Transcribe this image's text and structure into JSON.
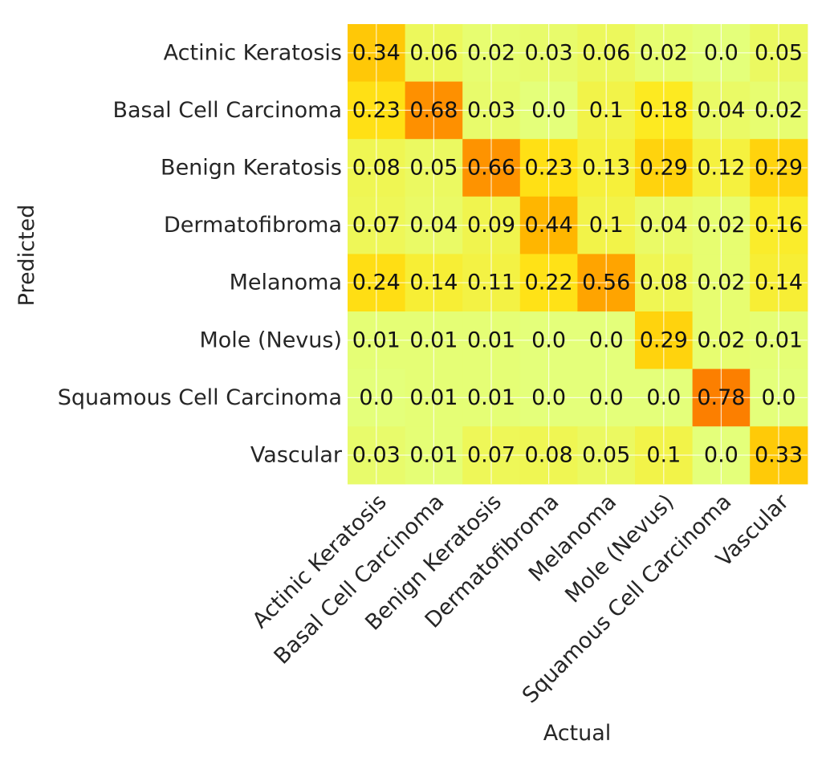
{
  "chart_data": {
    "type": "heatmap",
    "xlabel": "Actual",
    "ylabel": "Predicted",
    "x_categories": [
      "Actinic Keratosis",
      "Basal Cell Carcinoma",
      "Benign Keratosis",
      "Dermatofibroma",
      "Melanoma",
      "Mole (Nevus)",
      "Squamous Cell Carcinoma",
      "Vascular"
    ],
    "y_categories": [
      "Actinic Keratosis",
      "Basal Cell Carcinoma",
      "Benign Keratosis",
      "Dermatofibroma",
      "Melanoma",
      "Mole (Nevus)",
      "Squamous Cell Carcinoma",
      "Vascular"
    ],
    "values": [
      [
        "0.34",
        "0.06",
        "0.02",
        "0.03",
        "0.06",
        "0.02",
        "0.0",
        "0.05"
      ],
      [
        "0.23",
        "0.68",
        "0.03",
        "0.0",
        "0.1",
        "0.18",
        "0.04",
        "0.02"
      ],
      [
        "0.08",
        "0.05",
        "0.66",
        "0.23",
        "0.13",
        "0.29",
        "0.12",
        "0.29"
      ],
      [
        "0.07",
        "0.04",
        "0.09",
        "0.44",
        "0.1",
        "0.04",
        "0.02",
        "0.16"
      ],
      [
        "0.24",
        "0.14",
        "0.11",
        "0.22",
        "0.56",
        "0.08",
        "0.02",
        "0.14"
      ],
      [
        "0.01",
        "0.01",
        "0.01",
        "0.0",
        "0.0",
        "0.29",
        "0.02",
        "0.01"
      ],
      [
        "0.0",
        "0.01",
        "0.01",
        "0.0",
        "0.0",
        "0.0",
        "0.78",
        "0.0"
      ],
      [
        "0.03",
        "0.01",
        "0.07",
        "0.08",
        "0.05",
        "0.1",
        "0.0",
        "0.33"
      ]
    ],
    "colormap": "Wistia",
    "color_low": "#e4ff7a",
    "color_high": "#fc7f00",
    "grid": true
  }
}
